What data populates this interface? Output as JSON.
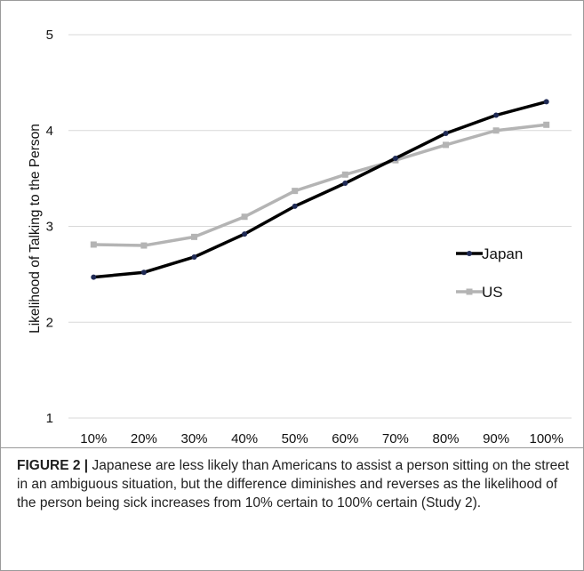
{
  "chart_data": {
    "type": "line",
    "title": "",
    "xlabel": "",
    "ylabel": "Likelihood of Talking to the Person",
    "categories": [
      "10%",
      "20%",
      "30%",
      "40%",
      "50%",
      "60%",
      "70%",
      "80%",
      "90%",
      "100%"
    ],
    "yticks": [
      "1",
      "2",
      "3",
      "4",
      "5"
    ],
    "ylim": [
      1,
      5
    ],
    "grid": "horizontal",
    "legend_position": "right",
    "series": [
      {
        "name": "Japan",
        "color": "#000000",
        "marker": "circle",
        "values": [
          2.47,
          2.52,
          2.68,
          2.92,
          3.21,
          3.45,
          3.71,
          3.97,
          4.16,
          4.3
        ]
      },
      {
        "name": "US",
        "color": "#b4b4b4",
        "marker": "square",
        "values": [
          2.81,
          2.8,
          2.89,
          3.1,
          3.37,
          3.54,
          3.69,
          3.85,
          4.0,
          4.06
        ]
      }
    ]
  },
  "caption": {
    "label": "FIGURE 2 |",
    "text": " Japanese are less likely than Americans to assist a person sitting on the street in an ambiguous situation, but the difference diminishes and reverses as the likelihood of the person being sick increases from 10% certain to 100% certain (Study 2)."
  }
}
